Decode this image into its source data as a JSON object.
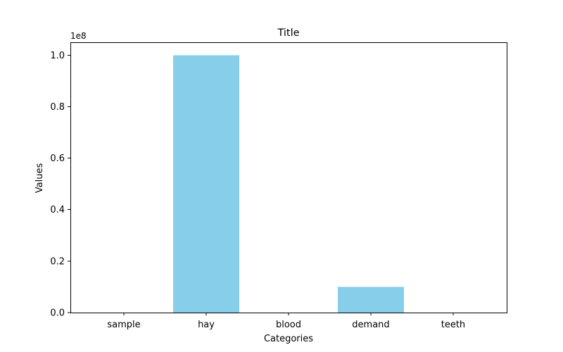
{
  "chart_data": {
    "type": "bar",
    "title": "Title",
    "xlabel": "Categories",
    "ylabel": "Values",
    "categories": [
      "sample",
      "hay",
      "blood",
      "demand",
      "teeth"
    ],
    "values": [
      0,
      100000000,
      0,
      10000000,
      0
    ],
    "ylim": [
      0,
      105000000
    ],
    "yticks": [
      0,
      20000000,
      40000000,
      60000000,
      80000000,
      100000000
    ],
    "ytick_labels": [
      "0.0",
      "0.2",
      "0.4",
      "0.6",
      "0.8",
      "1.0"
    ],
    "y_multiplier_label": "1e8",
    "bar_color": "#87ceeb",
    "grid": false,
    "legend": "none"
  }
}
